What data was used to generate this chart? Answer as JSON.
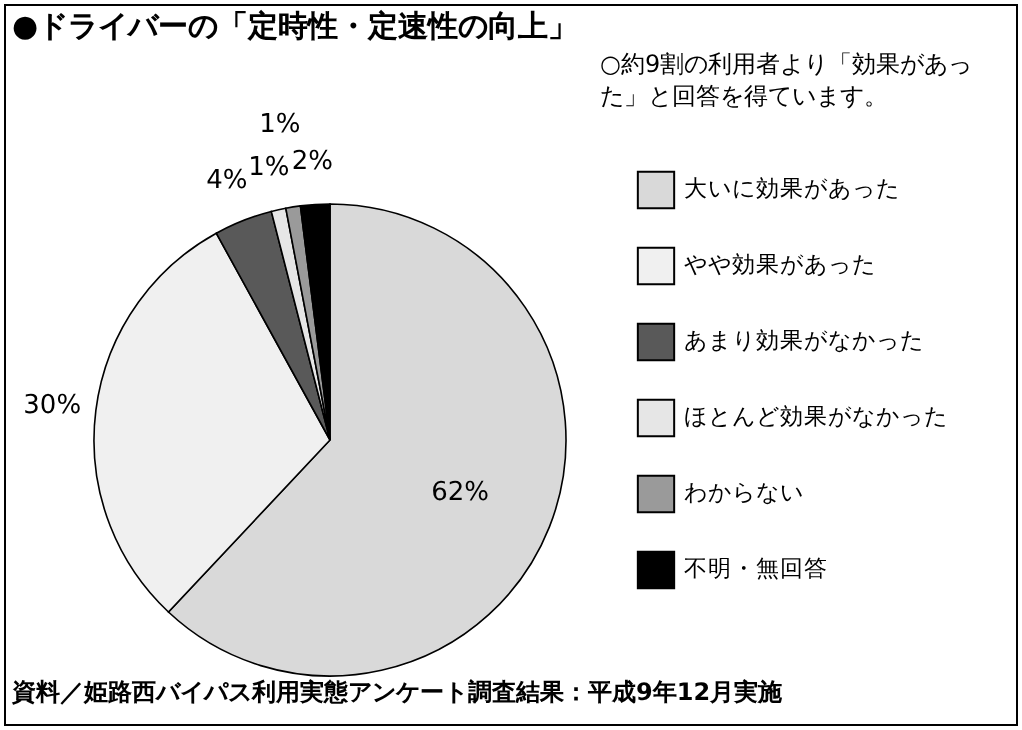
{
  "chart_data": {
    "type": "pie",
    "title": "●ドライバーの「定時性・定速性の向上」",
    "categories": [
      "大いに効果があった",
      "やや効果があった",
      "あまり効果がなかった",
      "ほとんど効果がなかった",
      "わからない",
      "不明・無回答"
    ],
    "values": [
      62,
      30,
      4,
      1,
      1,
      2
    ],
    "colors": [
      "#d9d9d9",
      "#f0f0f0",
      "#595959",
      "#e6e6e6",
      "#9a9a9a",
      "#000000"
    ],
    "value_labels": [
      "62%",
      "30%",
      "4%",
      "1%",
      "1%",
      "2%"
    ],
    "legend": "right",
    "annotations": [
      "○約9割の利用者より「効果があった」と回答を得ています。",
      "資料／姫路西バイパス利用実態アンケート調査結果：平成9年12月実施"
    ]
  }
}
